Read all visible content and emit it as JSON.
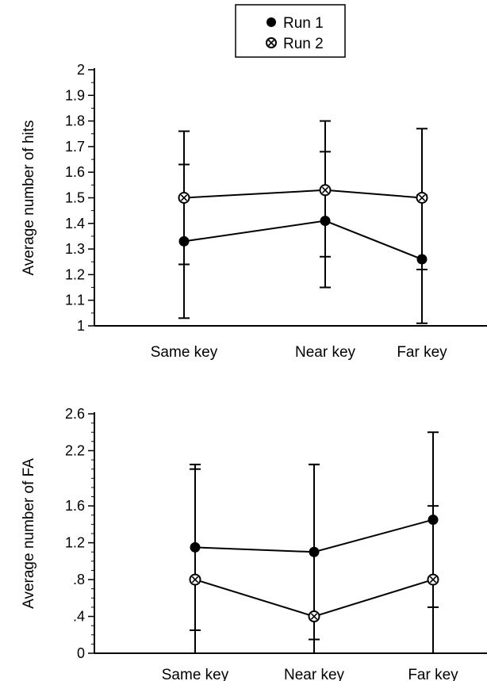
{
  "legend": {
    "entries": [
      {
        "label": "Run 1",
        "marker": "filled-circle"
      },
      {
        "label": "Run 2",
        "marker": "crossed-circle"
      }
    ]
  },
  "chart_data": [
    {
      "type": "line",
      "ylabel": "Average number of hits",
      "categories": [
        "Same key",
        "Near key",
        "Far key"
      ],
      "ylim": [
        1,
        2
      ],
      "yticks": [
        1,
        1.1,
        1.2,
        1.3,
        1.4,
        1.5,
        1.6,
        1.7,
        1.8,
        1.9,
        2
      ],
      "ytick_labels": [
        "1",
        "1.1",
        "1.2",
        "1.3",
        "1.4",
        "1.5",
        "1.6",
        "1.7",
        "1.8",
        "1.9",
        "2"
      ],
      "grid": false,
      "legend_position": "top-center",
      "series": [
        {
          "name": "Run 1",
          "marker": "filled-circle",
          "values": [
            1.33,
            1.41,
            1.26
          ],
          "err_low": [
            1.03,
            1.15,
            1.01
          ],
          "err_high": [
            1.63,
            1.68,
            1.51
          ]
        },
        {
          "name": "Run 2",
          "marker": "crossed-circle",
          "values": [
            1.5,
            1.53,
            1.5
          ],
          "err_low": [
            1.24,
            1.27,
            1.22
          ],
          "err_high": [
            1.76,
            1.8,
            1.77
          ]
        }
      ]
    },
    {
      "type": "line",
      "ylabel": "Average number of FA",
      "categories": [
        "Same key",
        "Near key",
        "Far key"
      ],
      "ylim": [
        0,
        2.6
      ],
      "yticks": [
        0,
        0.4,
        0.8,
        1.2,
        1.6,
        2.2,
        2.6
      ],
      "ytick_labels": [
        "0",
        ".4",
        ".8",
        "1.2",
        "1.6",
        "2.2",
        "2.6"
      ],
      "minor_tick_step": 0.1,
      "grid": false,
      "series": [
        {
          "name": "Run 1",
          "marker": "filled-circle",
          "values": [
            1.15,
            1.1,
            1.45
          ],
          "err_low": [
            0.25,
            0.15,
            0.5
          ],
          "err_high": [
            2.05,
            2.05,
            2.4
          ]
        },
        {
          "name": "Run 2",
          "marker": "crossed-circle",
          "values": [
            0.8,
            0.4,
            0.8
          ],
          "err_low": [
            0.0,
            0.0,
            0.0
          ],
          "err_high": [
            2.0,
            2.05,
            1.6
          ]
        }
      ]
    }
  ]
}
